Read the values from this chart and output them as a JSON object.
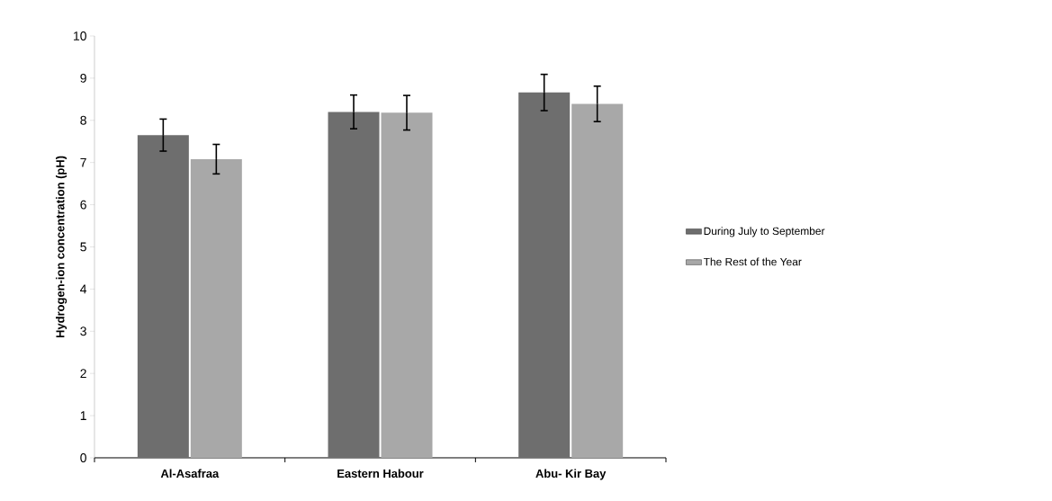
{
  "chart_data": {
    "type": "bar",
    "ylabel": "Hydrogen-ion concentration (pH)",
    "categories": [
      "Al-Asafraa",
      "Eastern Habour",
      "Abu- Kir Bay"
    ],
    "series": [
      {
        "name": "During July to September",
        "color": "#6e6e6e",
        "values": [
          7.65,
          8.2,
          8.66
        ],
        "errors": [
          0.38,
          0.4,
          0.43
        ]
      },
      {
        "name": "The Rest of the Year",
        "color": "#a8a8a8",
        "values": [
          7.08,
          8.18,
          8.39
        ],
        "errors": [
          0.35,
          0.41,
          0.42
        ]
      }
    ],
    "ylim": [
      0,
      10
    ],
    "yticks": [
      0,
      1,
      2,
      3,
      4,
      5,
      6,
      7,
      8,
      9,
      10
    ],
    "grid": false,
    "legend": "right"
  }
}
